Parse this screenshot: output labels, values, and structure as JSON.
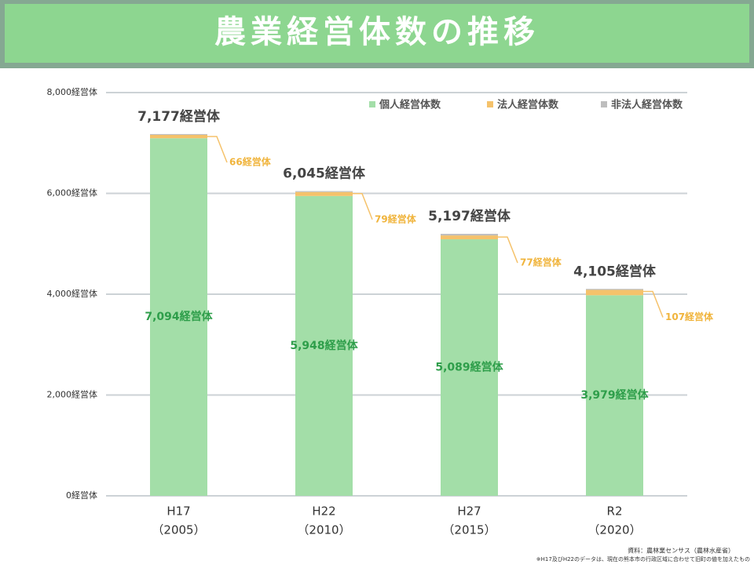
{
  "chart_data": {
    "type": "stacked_bar",
    "title": "農業経営体数の推移",
    "categories": [
      "H17",
      "H22",
      "H27",
      "R2"
    ],
    "category_sublabels": [
      "（2005）",
      "（2010）",
      "（2015）",
      "（2020）"
    ],
    "series": [
      {
        "name": "個人経営体数",
        "color": "#a3dea8",
        "values": [
          7094,
          5948,
          5089,
          3979
        ],
        "value_labels": [
          "7,094経営体",
          "5,948経営体",
          "5,089経営体",
          "3,979経営体"
        ],
        "label_color": "#2e9e4a"
      },
      {
        "name": "法人経営体数",
        "color": "#f5c26b",
        "values": [
          66,
          79,
          77,
          107
        ],
        "value_labels": [
          "66経営体",
          "79経営体",
          "77経営体",
          "107経営体"
        ],
        "label_color": "#f0b43c"
      },
      {
        "name": "非法人経営体数",
        "color": "#bdbdbd",
        "values": [
          17,
          18,
          31,
          19
        ]
      }
    ],
    "totals": [
      7177,
      6045,
      5197,
      4105
    ],
    "total_labels": [
      "7,177経営体",
      "6,045経営体",
      "5,197経営体",
      "4,105経営体"
    ],
    "ylim": [
      0,
      8000
    ],
    "yticks": [
      {
        "value": 0,
        "label": "0経営体"
      },
      {
        "value": 2000,
        "label": "2,000経営体"
      },
      {
        "value": 4000,
        "label": "4,000経営体"
      },
      {
        "value": 6000,
        "label": "6,000経営体"
      },
      {
        "value": 8000,
        "label": "8,000経営体"
      }
    ],
    "grid": true,
    "legend": "top-right",
    "source": "資料：農林業センサス（農林水産省）",
    "note": "※H17及びH22のデータは、現在の熊本市の行政区域に合わせて旧町の値を加えたもの"
  }
}
